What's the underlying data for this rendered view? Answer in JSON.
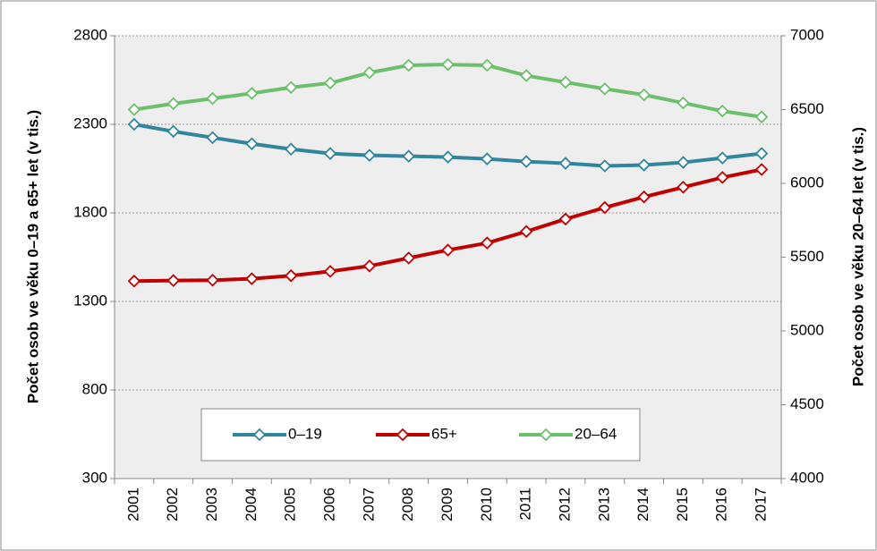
{
  "chart_data": {
    "type": "line",
    "y_label": "Počet osob ve věku 0–19 a 65+ let (v tis.)",
    "y2_label": "Počet osob ve věku 20–64 let (v tis.)",
    "categories": [
      "2001",
      "2002",
      "2003",
      "2004",
      "2005",
      "2006",
      "2007",
      "2008",
      "2009",
      "2010",
      "2011",
      "2012",
      "2013",
      "2014",
      "2015",
      "2016",
      "2017"
    ],
    "series": [
      {
        "name": "0–19",
        "color": "#31859c",
        "values": [
          2300,
          2260,
          2225,
          2190,
          2160,
          2135,
          2125,
          2120,
          2115,
          2105,
          2090,
          2080,
          2065,
          2070,
          2085,
          2110,
          2135
        ]
      },
      {
        "name": "65+",
        "color": "#c00000",
        "values": [
          1415,
          1418,
          1420,
          1428,
          1445,
          1470,
          1500,
          1545,
          1590,
          1630,
          1695,
          1765,
          1830,
          1890,
          1945,
          2000,
          2045
        ]
      },
      {
        "name": "20–64",
        "color": "#6cbf6b",
        "axis": "y2",
        "values": [
          6500,
          6540,
          6575,
          6610,
          6650,
          6680,
          6750,
          6800,
          6805,
          6800,
          6730,
          6685,
          6640,
          6600,
          6545,
          6490,
          6450
        ]
      }
    ],
    "ylim": [
      300,
      2800
    ],
    "yticks": [
      300,
      800,
      1300,
      1800,
      2300,
      2800
    ],
    "y2lim": [
      4000,
      7000
    ],
    "y2ticks": [
      4000,
      4500,
      5000,
      5500,
      6000,
      6500,
      7000
    ],
    "grid": true,
    "legend": "bottom"
  }
}
